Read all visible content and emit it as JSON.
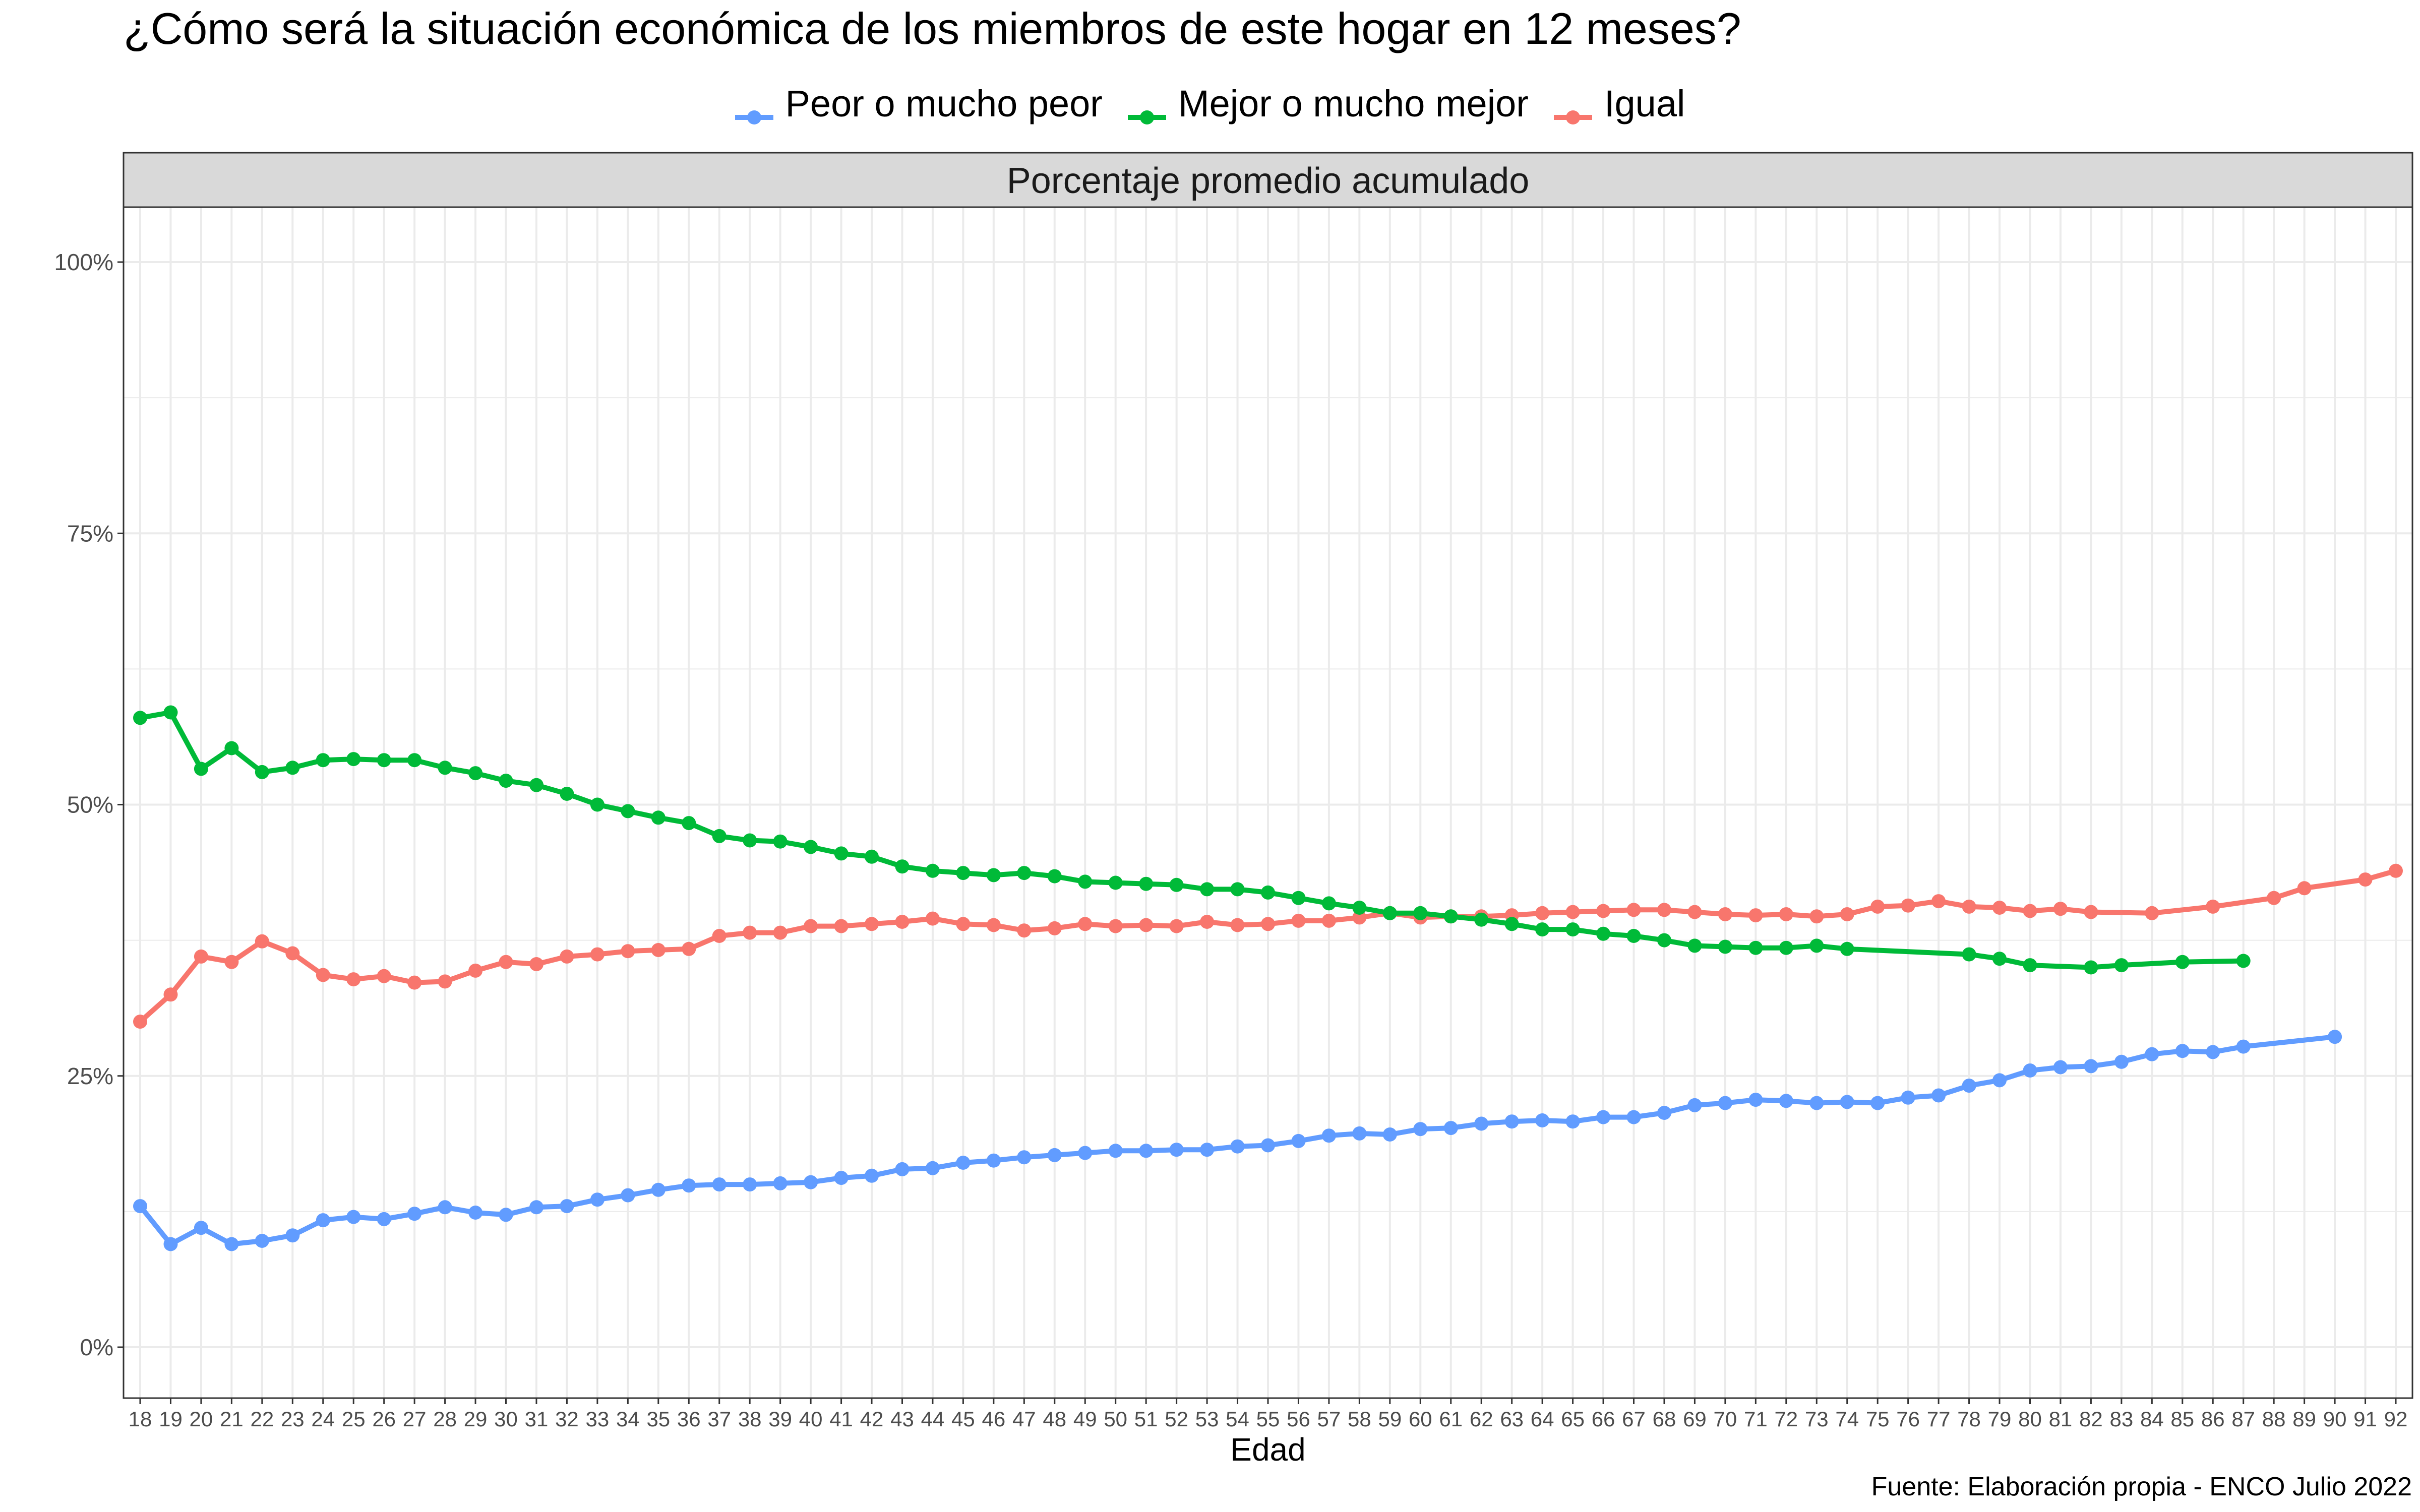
{
  "title": "¿Cómo será la situación económica de los miembros de este hogar en 12 meses?",
  "source": "Fuente: Elaboración propia - ENCO Julio 2022",
  "colors": {
    "peor": "#619CFF",
    "mejor": "#00BA38",
    "igual": "#F8766D",
    "strip": "#D9D9D9",
    "grid": "#EBEBEB"
  },
  "chart_data": {
    "type": "line",
    "title": "¿Cómo será la situación económica de los miembros de este hogar en 12 meses?",
    "facet_label": "Porcentaje promedio acumulado",
    "xlabel": "Edad",
    "ylabel": "",
    "xlim": [
      18,
      92
    ],
    "ylim": [
      0,
      100
    ],
    "y_ticks": [
      "0%",
      "25%",
      "50%",
      "75%",
      "100%"
    ],
    "y_tick_values": [
      0,
      25,
      50,
      75,
      100
    ],
    "x_ticks": [
      18,
      19,
      20,
      21,
      22,
      23,
      24,
      25,
      26,
      27,
      28,
      29,
      30,
      31,
      32,
      33,
      34,
      35,
      36,
      37,
      38,
      39,
      40,
      41,
      42,
      43,
      44,
      45,
      46,
      47,
      48,
      49,
      50,
      51,
      52,
      53,
      54,
      55,
      56,
      57,
      58,
      59,
      60,
      61,
      62,
      63,
      64,
      65,
      66,
      67,
      68,
      69,
      70,
      71,
      72,
      73,
      74,
      75,
      76,
      77,
      78,
      79,
      80,
      81,
      82,
      83,
      84,
      85,
      86,
      87,
      88,
      89,
      90,
      91,
      92
    ],
    "legend_position": "top",
    "grid": true,
    "series": [
      {
        "name": "Peor o mucho peor",
        "color": "#619CFF",
        "x": [
          18,
          19,
          20,
          21,
          22,
          23,
          24,
          25,
          26,
          27,
          28,
          29,
          30,
          31,
          32,
          33,
          34,
          35,
          36,
          37,
          38,
          39,
          40,
          41,
          42,
          43,
          44,
          45,
          46,
          47,
          48,
          49,
          50,
          51,
          52,
          53,
          54,
          55,
          56,
          57,
          58,
          59,
          60,
          61,
          62,
          63,
          64,
          65,
          66,
          67,
          68,
          69,
          70,
          71,
          72,
          73,
          74,
          75,
          76,
          77,
          78,
          79,
          80,
          81,
          82,
          83,
          84,
          85,
          86,
          87,
          90
        ],
        "y": [
          13.0,
          9.5,
          11.0,
          9.5,
          9.8,
          10.3,
          11.7,
          12.0,
          11.8,
          12.3,
          12.9,
          12.4,
          12.2,
          12.9,
          13.0,
          13.6,
          14.0,
          14.5,
          14.9,
          15.0,
          15.0,
          15.1,
          15.2,
          15.6,
          15.8,
          16.4,
          16.5,
          17.0,
          17.2,
          17.5,
          17.7,
          17.9,
          18.1,
          18.1,
          18.2,
          18.2,
          18.5,
          18.6,
          19.0,
          19.5,
          19.7,
          19.6,
          20.1,
          20.2,
          20.6,
          20.8,
          20.9,
          20.8,
          21.2,
          21.2,
          21.6,
          22.3,
          22.5,
          22.8,
          22.7,
          22.5,
          22.6,
          22.5,
          23.0,
          23.2,
          24.1,
          24.6,
          25.5,
          25.8,
          25.9,
          26.3,
          27.0,
          27.3,
          27.2,
          27.7,
          28.6
        ]
      },
      {
        "name": "Mejor o mucho mejor",
        "color": "#00BA38",
        "x": [
          18,
          19,
          20,
          21,
          22,
          23,
          24,
          25,
          26,
          27,
          28,
          29,
          30,
          31,
          32,
          33,
          34,
          35,
          36,
          37,
          38,
          39,
          40,
          41,
          42,
          43,
          44,
          45,
          46,
          47,
          48,
          49,
          50,
          51,
          52,
          53,
          54,
          55,
          56,
          57,
          58,
          59,
          60,
          61,
          62,
          63,
          64,
          65,
          66,
          67,
          68,
          69,
          70,
          71,
          72,
          73,
          74,
          78,
          79,
          80,
          82,
          83,
          85,
          87
        ],
        "y": [
          58.0,
          58.5,
          53.3,
          55.2,
          53.0,
          53.4,
          54.1,
          54.2,
          54.1,
          54.1,
          53.4,
          52.9,
          52.2,
          51.8,
          51.0,
          50.0,
          49.4,
          48.8,
          48.3,
          47.1,
          46.7,
          46.6,
          46.1,
          45.5,
          45.2,
          44.3,
          43.9,
          43.7,
          43.5,
          43.7,
          43.4,
          42.9,
          42.8,
          42.7,
          42.6,
          42.2,
          42.2,
          41.9,
          41.4,
          40.9,
          40.5,
          40.0,
          40.0,
          39.7,
          39.4,
          39.0,
          38.5,
          38.5,
          38.1,
          37.9,
          37.5,
          37.0,
          36.9,
          36.8,
          36.8,
          37.0,
          36.7,
          36.2,
          35.8,
          35.2,
          35.0,
          35.2,
          35.5,
          35.6
        ]
      },
      {
        "name": "Igual",
        "color": "#F8766D",
        "x": [
          18,
          19,
          20,
          21,
          22,
          23,
          24,
          25,
          26,
          27,
          28,
          29,
          30,
          31,
          32,
          33,
          34,
          35,
          36,
          37,
          38,
          39,
          40,
          41,
          42,
          43,
          44,
          45,
          46,
          47,
          48,
          49,
          50,
          51,
          52,
          53,
          54,
          55,
          56,
          57,
          58,
          59,
          60,
          61,
          62,
          63,
          64,
          65,
          66,
          67,
          68,
          69,
          70,
          71,
          72,
          73,
          74,
          75,
          76,
          77,
          78,
          79,
          80,
          81,
          82,
          84,
          86,
          88,
          89,
          91,
          92
        ],
        "y": [
          30.0,
          32.5,
          36.0,
          35.5,
          37.4,
          36.3,
          34.3,
          33.9,
          34.2,
          33.6,
          33.7,
          34.7,
          35.5,
          35.3,
          36.0,
          36.2,
          36.5,
          36.6,
          36.7,
          37.9,
          38.2,
          38.2,
          38.8,
          38.8,
          39.0,
          39.2,
          39.5,
          39.0,
          38.9,
          38.4,
          38.6,
          39.0,
          38.8,
          38.9,
          38.8,
          39.2,
          38.9,
          39.0,
          39.3,
          39.3,
          39.6,
          40.0,
          39.6,
          39.7,
          39.7,
          39.8,
          40.0,
          40.1,
          40.2,
          40.3,
          40.3,
          40.1,
          39.9,
          39.8,
          39.9,
          39.7,
          39.9,
          40.6,
          40.7,
          41.1,
          40.6,
          40.5,
          40.2,
          40.4,
          40.1,
          40.0,
          40.6,
          41.4,
          42.3,
          43.1,
          43.9
        ]
      }
    ]
  }
}
